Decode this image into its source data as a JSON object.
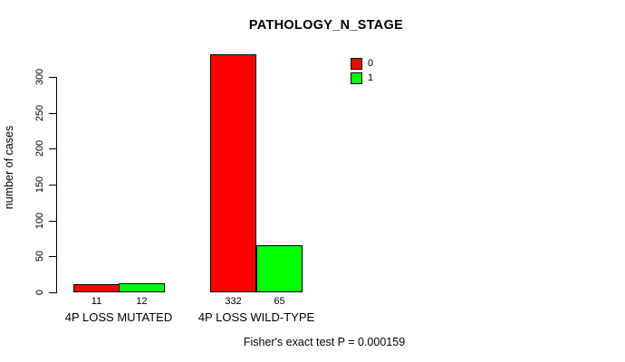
{
  "chart_data": {
    "type": "bar",
    "title": "PATHOLOGY_N_STAGE",
    "xlabel": "",
    "ylabel": "number of cases",
    "categories": [
      "4P LOSS MUTATED",
      "4P LOSS WILD-TYPE"
    ],
    "series": [
      {
        "name": "0",
        "color": "#ff0000",
        "values": [
          11,
          332
        ]
      },
      {
        "name": "1",
        "color": "#00ff00",
        "values": [
          12,
          65
        ]
      }
    ],
    "ylim": [
      0,
      300
    ],
    "yticks": [
      0,
      50,
      100,
      150,
      200,
      250,
      300
    ],
    "grid": false,
    "legend_position": "top-right",
    "bar_border_color": "#000000",
    "caption": "Fisher's exact test P = 0.000159"
  }
}
